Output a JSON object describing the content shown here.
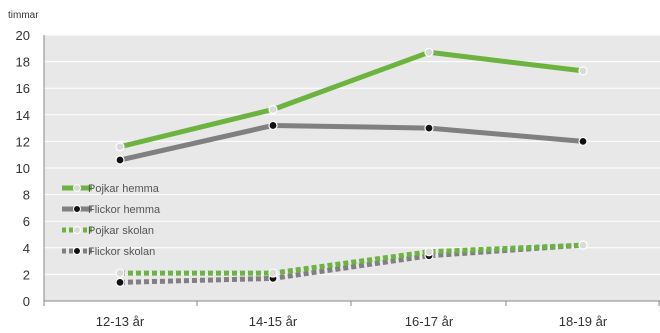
{
  "chart_data": {
    "type": "line",
    "title": "",
    "ylabel": "timmar",
    "xlabel": "",
    "categories": [
      "12-13 år",
      "14-15 år",
      "16-17 år",
      "18-19 år"
    ],
    "ylim": [
      0,
      20
    ],
    "yticks": [
      0,
      2,
      4,
      6,
      8,
      10,
      12,
      14,
      16,
      18,
      20
    ],
    "grid": true,
    "legend_position": "left",
    "series": [
      {
        "name": "Pojkar hemma",
        "values": [
          11.6,
          14.4,
          18.7,
          17.3
        ],
        "color": "#6cb33f",
        "line_style": "solid",
        "marker_fill": "#d9d9d9"
      },
      {
        "name": "Flickor hemma",
        "values": [
          10.6,
          13.2,
          13.0,
          12.0
        ],
        "color": "#808080",
        "line_style": "solid",
        "marker_fill": "#111111"
      },
      {
        "name": "Pojkar skolan",
        "values": [
          2.1,
          2.1,
          3.7,
          4.2
        ],
        "color": "#6cb33f",
        "line_style": "dotted",
        "marker_fill": "#d9d9d9"
      },
      {
        "name": "Flickor skolan",
        "values": [
          1.4,
          1.7,
          3.4,
          4.2
        ],
        "color": "#808080",
        "line_style": "dotted",
        "marker_fill": "#111111"
      }
    ]
  },
  "colors": {
    "plot_background": "#e8e8e8",
    "grid": "#ffffff",
    "axis": "#888888"
  }
}
